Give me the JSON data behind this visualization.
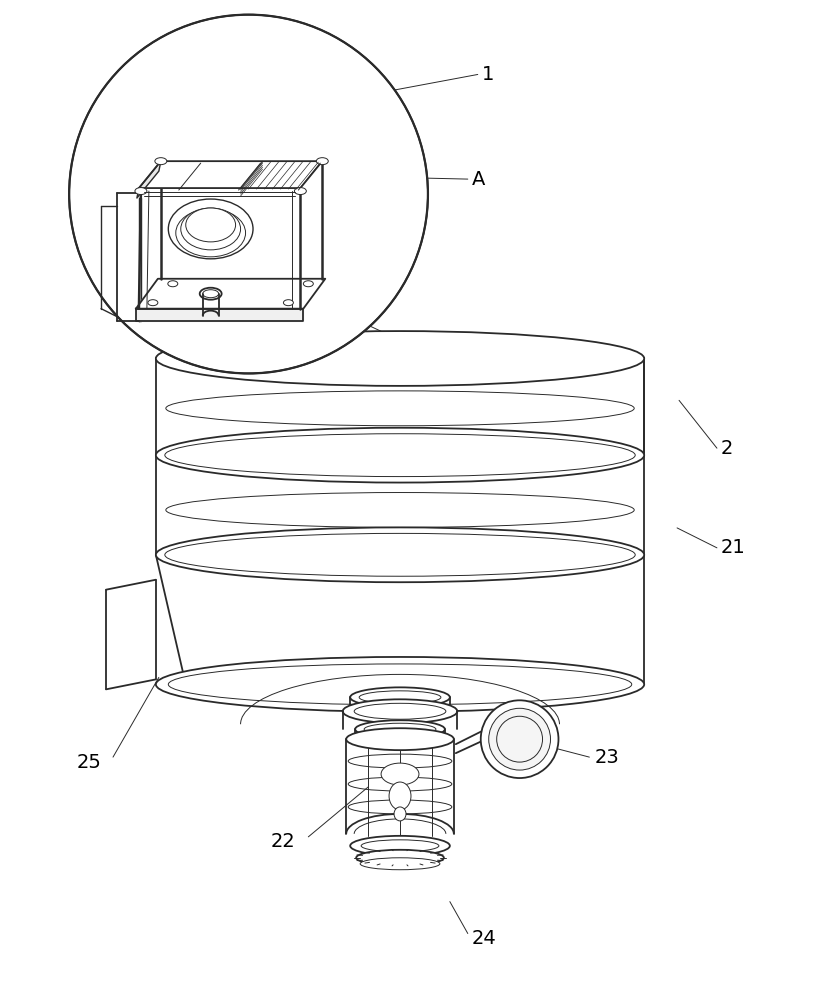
{
  "bg_color": "#ffffff",
  "line_color": "#2a2a2a",
  "label_color": "#000000",
  "label_fontsize": 14,
  "lw_main": 1.3,
  "lw_thin": 0.7,
  "lw_med": 1.0
}
